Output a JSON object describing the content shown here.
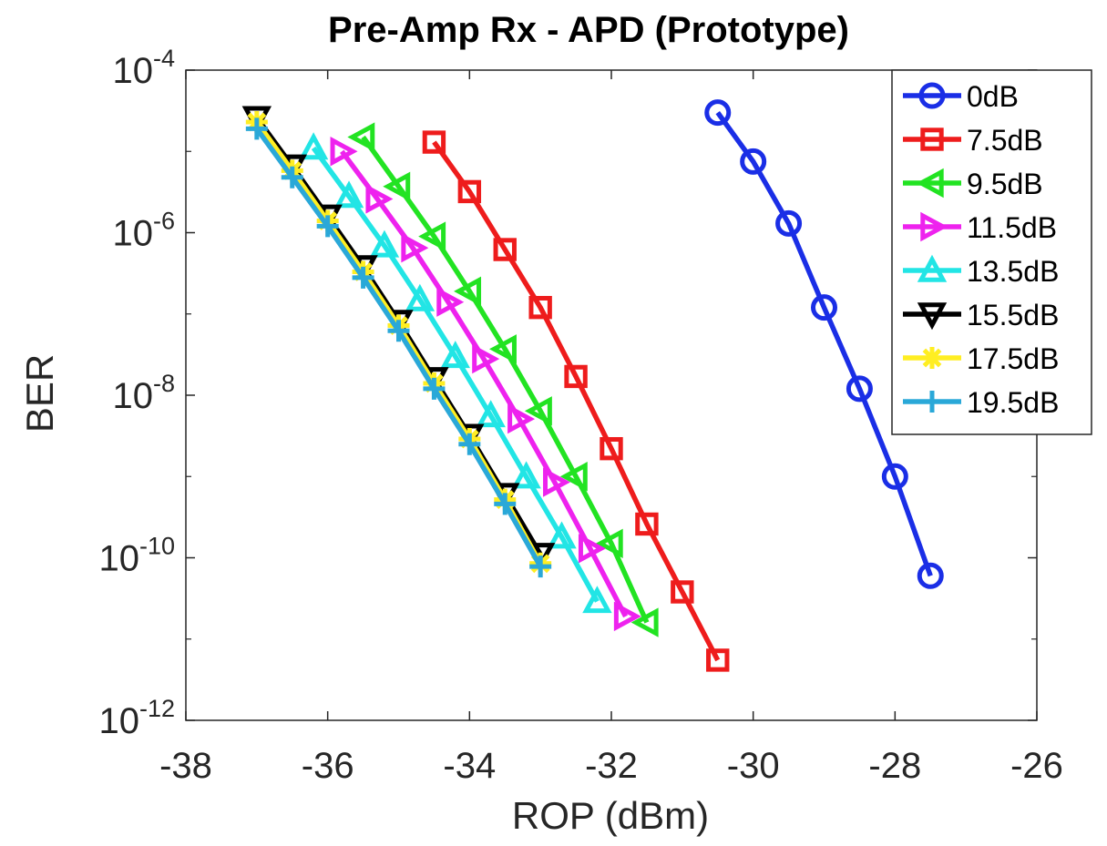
{
  "chart_data": {
    "type": "line",
    "title": "Pre-Amp Rx - APD (Prototype)",
    "xlabel": "ROP (dBm)",
    "ylabel": "BER",
    "xlim": [
      -38,
      -26
    ],
    "ylim_exp": [
      -12,
      -4
    ],
    "yscale": "log",
    "x_ticks": [
      "-38",
      "-36",
      "-34",
      "-32",
      "-30",
      "-28",
      "-26"
    ],
    "y_ticks": [
      {
        "base": "10",
        "exp": "-4"
      },
      {
        "base": "10",
        "exp": "-6"
      },
      {
        "base": "10",
        "exp": "-8"
      },
      {
        "base": "10",
        "exp": "-10"
      },
      {
        "base": "10",
        "exp": "-12"
      }
    ],
    "grid": false,
    "legend_position": "top-right",
    "series": [
      {
        "name": "0dB",
        "color": "#1a2ee6",
        "marker": "circle",
        "points": [
          [
            -30.5,
            3e-05
          ],
          [
            -30.0,
            7.5e-06
          ],
          [
            -29.5,
            1.3e-06
          ],
          [
            -29.0,
            1.2e-07
          ],
          [
            -28.5,
            1.2e-08
          ],
          [
            -28.0,
            1e-09
          ],
          [
            -27.5,
            6e-11
          ]
        ]
      },
      {
        "name": "7.5dB",
        "color": "#ee1c1c",
        "marker": "square",
        "points": [
          [
            -34.5,
            1.3e-05
          ],
          [
            -34.0,
            3.2e-06
          ],
          [
            -33.5,
            6.2e-07
          ],
          [
            -33.0,
            1.2e-07
          ],
          [
            -32.5,
            1.7e-08
          ],
          [
            -32.0,
            2.2e-09
          ],
          [
            -31.5,
            2.6e-10
          ],
          [
            -31.0,
            3.8e-11
          ],
          [
            -30.5,
            5.5e-12
          ]
        ]
      },
      {
        "name": "9.5dB",
        "color": "#22e322",
        "marker": "triangle-left",
        "points": [
          [
            -35.5,
            1.5e-05
          ],
          [
            -35.0,
            3.7e-06
          ],
          [
            -34.5,
            9e-07
          ],
          [
            -34.0,
            1.9e-07
          ],
          [
            -33.5,
            3.7e-08
          ],
          [
            -33.0,
            6.4e-09
          ],
          [
            -32.5,
            1e-09
          ],
          [
            -32.0,
            1.5e-10
          ],
          [
            -31.5,
            1.6e-11
          ]
        ]
      },
      {
        "name": "11.5dB",
        "color": "#ee22ee",
        "marker": "triangle-right",
        "points": [
          [
            -35.8,
            1e-05
          ],
          [
            -35.3,
            2.6e-06
          ],
          [
            -34.8,
            6.5e-07
          ],
          [
            -34.3,
            1.4e-07
          ],
          [
            -33.8,
            2.8e-08
          ],
          [
            -33.3,
            5.1e-09
          ],
          [
            -32.8,
            8.5e-10
          ],
          [
            -32.3,
            1.3e-10
          ],
          [
            -31.8,
            1.9e-11
          ]
        ]
      },
      {
        "name": "13.5dB",
        "color": "#22e5e5",
        "marker": "triangle-up",
        "points": [
          [
            -36.2,
            1.1e-05
          ],
          [
            -35.7,
            2.8e-06
          ],
          [
            -35.2,
            6.9e-07
          ],
          [
            -34.7,
            1.5e-07
          ],
          [
            -34.2,
            3e-08
          ],
          [
            -33.7,
            5.6e-09
          ],
          [
            -33.2,
            9.9e-10
          ],
          [
            -32.7,
            1.8e-10
          ],
          [
            -32.2,
            2.9e-11
          ]
        ]
      },
      {
        "name": "15.5dB",
        "color": "#000000",
        "marker": "triangle-down",
        "points": [
          [
            -37.0,
            2.6e-05
          ],
          [
            -36.5,
            6.6e-06
          ],
          [
            -36.0,
            1.6e-06
          ],
          [
            -35.5,
            3.8e-07
          ],
          [
            -35.0,
            8.1e-08
          ],
          [
            -34.5,
            1.6e-08
          ],
          [
            -34.0,
            3.2e-09
          ],
          [
            -33.5,
            6e-10
          ],
          [
            -33.0,
            1.1e-10
          ]
        ]
      },
      {
        "name": "17.5dB",
        "color": "#ffee22",
        "marker": "asterisk",
        "points": [
          [
            -37.0,
            2.3e-05
          ],
          [
            -36.5,
            5.8e-06
          ],
          [
            -36.0,
            1.4e-06
          ],
          [
            -35.5,
            3.3e-07
          ],
          [
            -35.0,
            7.2e-08
          ],
          [
            -34.5,
            1.4e-08
          ],
          [
            -34.0,
            2.9e-09
          ],
          [
            -33.5,
            5.2e-10
          ],
          [
            -33.0,
            8.5e-11
          ]
        ]
      },
      {
        "name": "19.5dB",
        "color": "#2aa8d8",
        "marker": "plus",
        "points": [
          [
            -37.0,
            1.9e-05
          ],
          [
            -36.5,
            4.8e-06
          ],
          [
            -36.0,
            1.2e-06
          ],
          [
            -35.5,
            2.8e-07
          ],
          [
            -35.0,
            6.2e-08
          ],
          [
            -34.5,
            1.2e-08
          ],
          [
            -34.0,
            2.5e-09
          ],
          [
            -33.5,
            4.6e-10
          ],
          [
            -33.0,
            7.8e-11
          ]
        ]
      }
    ]
  }
}
